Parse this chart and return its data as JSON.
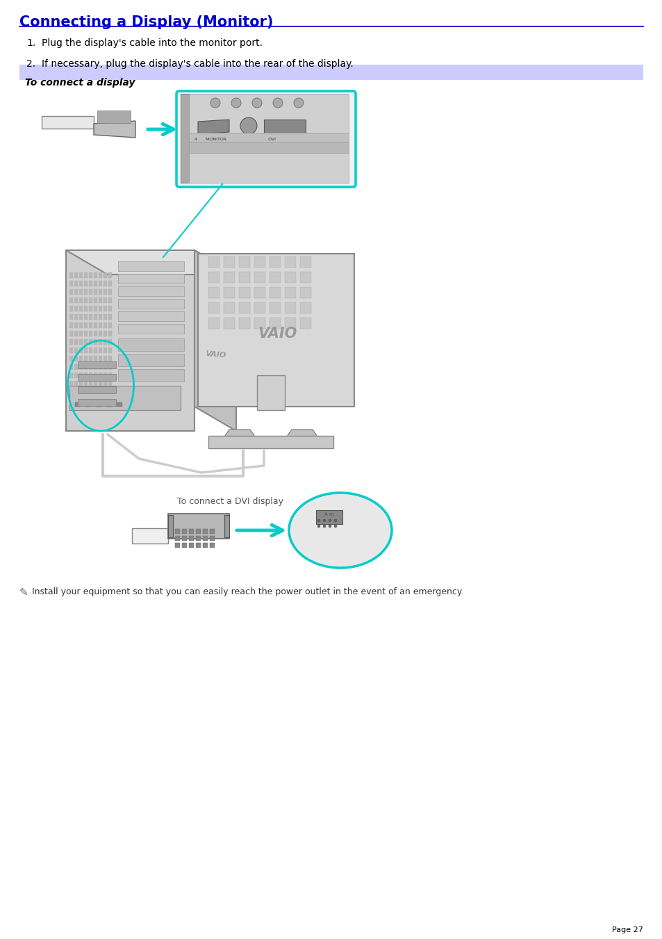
{
  "page_bg": "#ffffff",
  "title": "Connecting a Display (Monitor)",
  "title_color": "#0000cc",
  "title_underline_color": "#0000cc",
  "header_bar_color": "#ccccff",
  "header_text": "To connect a display",
  "step1_num": "1.",
  "step1_text": "Plug the display's cable into the monitor port.",
  "step2_num": "2.",
  "step2_text": "If necessary, plug the display's cable into the rear of the display.",
  "caption1": "To connect a DVI display",
  "note_text": "Install your equipment so that you can easily reach the power outlet in the event of an emergency.",
  "page_num": "Page 27",
  "font_size_title": 15,
  "font_size_body": 10,
  "font_size_caption": 9,
  "font_size_note": 9,
  "font_size_page": 8,
  "body_color": "#000000",
  "caption_color": "#555555",
  "note_color": "#333333"
}
